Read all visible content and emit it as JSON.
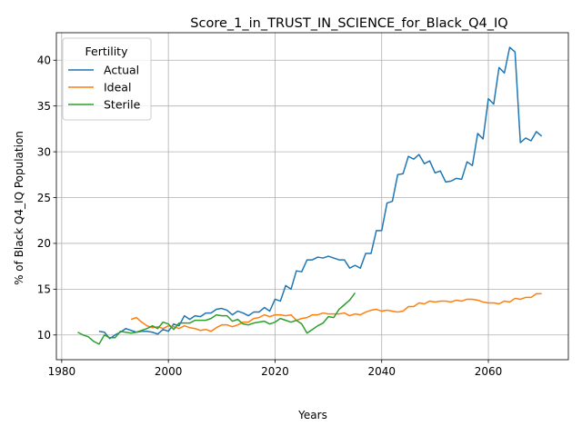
{
  "chart_data": {
    "type": "line",
    "title": "Score_1_in_TRUST_IN_SCIENCE_for_Black_Q4_IQ",
    "xlabel": "Years",
    "ylabel": "% of Black Q4_IQ Population",
    "xlim": [
      1979,
      2075
    ],
    "ylim": [
      7.3,
      43
    ],
    "xticks": [
      1980,
      2000,
      2020,
      2040,
      2060
    ],
    "yticks": [
      10,
      15,
      20,
      25,
      30,
      35,
      40
    ],
    "grid": true,
    "legend": {
      "title": "Fertility",
      "position": "top-left"
    },
    "series": [
      {
        "name": "Actual",
        "color": "#1f77b4",
        "x": [
          1987,
          1988,
          1989,
          1990,
          1991,
          1992,
          1993,
          1994,
          1995,
          1996,
          1997,
          1998,
          1999,
          2000,
          2001,
          2002,
          2003,
          2004,
          2005,
          2006,
          2007,
          2008,
          2009,
          2010,
          2011,
          2012,
          2013,
          2014,
          2015,
          2016,
          2017,
          2018,
          2019,
          2020,
          2021,
          2022,
          2023,
          2024,
          2025,
          2026,
          2027,
          2028,
          2029,
          2030,
          2031,
          2032,
          2033,
          2034,
          2035,
          2036,
          2037,
          2038,
          2039,
          2040,
          2041,
          2042,
          2043,
          2044,
          2045,
          2046,
          2047,
          2048,
          2049,
          2050,
          2051,
          2052,
          2053,
          2054,
          2055,
          2056,
          2057,
          2058,
          2059,
          2060,
          2061,
          2062,
          2063,
          2064,
          2065,
          2066,
          2067,
          2068,
          2069,
          2070
        ],
        "values": [
          10.4,
          10.3,
          9.6,
          10.0,
          10.3,
          10.7,
          10.5,
          10.3,
          10.4,
          10.4,
          10.3,
          10.1,
          10.6,
          10.4,
          11.2,
          11.0,
          12.1,
          11.7,
          12.1,
          12.0,
          12.4,
          12.4,
          12.8,
          12.9,
          12.7,
          12.2,
          12.6,
          12.4,
          12.1,
          12.5,
          12.5,
          13.0,
          12.6,
          13.9,
          13.7,
          15.4,
          15.0,
          17.0,
          16.9,
          18.2,
          18.2,
          18.5,
          18.4,
          18.6,
          18.4,
          18.2,
          18.2,
          17.3,
          17.6,
          17.3,
          18.9,
          18.9,
          21.4,
          21.4,
          24.4,
          24.6,
          27.5,
          27.6,
          29.5,
          29.2,
          29.7,
          28.7,
          29.0,
          27.7,
          27.9,
          26.7,
          26.8,
          27.1,
          27.0,
          28.9,
          28.5,
          32.0,
          31.4,
          35.8,
          35.2,
          39.2,
          38.6,
          41.4,
          40.9,
          31.0,
          31.5,
          31.2,
          32.2,
          31.7
        ]
      },
      {
        "name": "Ideal",
        "color": "#ff7f0e",
        "x": [
          1993,
          1994,
          1995,
          1996,
          1997,
          1998,
          1999,
          2000,
          2001,
          2002,
          2003,
          2004,
          2005,
          2006,
          2007,
          2008,
          2009,
          2010,
          2011,
          2012,
          2013,
          2014,
          2015,
          2016,
          2017,
          2018,
          2019,
          2020,
          2021,
          2022,
          2023,
          2024,
          2025,
          2026,
          2027,
          2028,
          2029,
          2030,
          2031,
          2032,
          2033,
          2034,
          2035,
          2036,
          2037,
          2038,
          2039,
          2040,
          2041,
          2042,
          2043,
          2044,
          2045,
          2046,
          2047,
          2048,
          2049,
          2050,
          2051,
          2052,
          2053,
          2054,
          2055,
          2056,
          2057,
          2058,
          2059,
          2060,
          2061,
          2062,
          2063,
          2064,
          2065,
          2066,
          2067,
          2068,
          2069,
          2070
        ],
        "values": [
          11.7,
          11.9,
          11.4,
          11.0,
          10.8,
          10.9,
          10.7,
          11.0,
          10.9,
          10.7,
          11.0,
          10.8,
          10.7,
          10.5,
          10.6,
          10.4,
          10.8,
          11.1,
          11.1,
          10.9,
          11.1,
          11.4,
          11.4,
          11.8,
          11.9,
          12.2,
          12.0,
          12.2,
          12.2,
          12.1,
          12.2,
          11.6,
          11.8,
          11.9,
          12.2,
          12.2,
          12.4,
          12.3,
          12.3,
          12.3,
          12.4,
          12.1,
          12.3,
          12.2,
          12.5,
          12.7,
          12.8,
          12.6,
          12.7,
          12.6,
          12.5,
          12.6,
          13.1,
          13.1,
          13.5,
          13.4,
          13.7,
          13.6,
          13.7,
          13.7,
          13.6,
          13.8,
          13.7,
          13.9,
          13.9,
          13.8,
          13.6,
          13.5,
          13.5,
          13.4,
          13.7,
          13.6,
          14.0,
          13.9,
          14.1,
          14.1,
          14.5,
          14.5
        ]
      },
      {
        "name": "Sterile",
        "color": "#2ca02c",
        "x": [
          1983,
          1984,
          1985,
          1986,
          1987,
          1988,
          1989,
          1990,
          1991,
          1992,
          1993,
          1994,
          1995,
          1996,
          1997,
          1998,
          1999,
          2000,
          2001,
          2002,
          2003,
          2004,
          2005,
          2006,
          2007,
          2008,
          2009,
          2010,
          2011,
          2012,
          2013,
          2014,
          2015,
          2016,
          2017,
          2018,
          2019,
          2020,
          2021,
          2022,
          2023,
          2024,
          2025,
          2026,
          2027,
          2028,
          2029,
          2030,
          2031,
          2032,
          2033,
          2034,
          2035
        ],
        "values": [
          10.3,
          10.0,
          9.8,
          9.3,
          9.0,
          10.0,
          9.7,
          9.7,
          10.4,
          10.3,
          10.2,
          10.3,
          10.5,
          10.7,
          11.0,
          10.7,
          11.4,
          11.2,
          10.6,
          11.3,
          11.3,
          11.3,
          11.6,
          11.6,
          11.6,
          11.8,
          12.2,
          12.1,
          12.1,
          11.5,
          11.7,
          11.2,
          11.1,
          11.3,
          11.4,
          11.5,
          11.2,
          11.4,
          11.8,
          11.6,
          11.4,
          11.6,
          11.2,
          10.2,
          10.6,
          11.0,
          11.3,
          12.0,
          11.9,
          12.8,
          13.3,
          13.8,
          14.6
        ]
      }
    ]
  }
}
